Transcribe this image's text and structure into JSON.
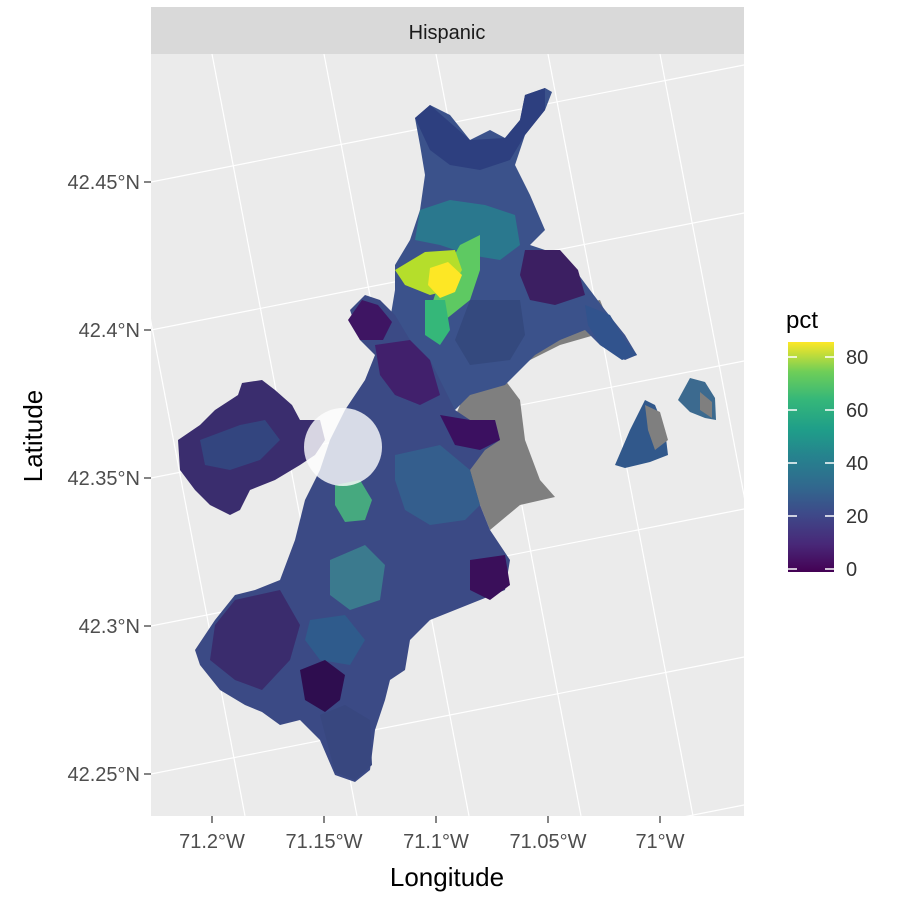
{
  "facet_strip": {
    "label": "Hispanic"
  },
  "map": {
    "x_axis": {
      "title": "Longitude",
      "ticks": [
        "71.2°W",
        "71.15°W",
        "71.1°W",
        "71.05°W",
        "71°W"
      ]
    },
    "y_axis": {
      "title": "Latitude",
      "ticks": [
        "42.45°N",
        "42.4°N",
        "42.35°N",
        "42.3°N",
        "42.25°N"
      ]
    },
    "legend": {
      "title": "pct",
      "labels": [
        "80",
        "60",
        "40",
        "20",
        "0"
      ],
      "colorscale": "viridis",
      "colors": [
        "#fde725",
        "#5ec962",
        "#21918c",
        "#3b528b",
        "#440154"
      ]
    },
    "missing_color": "#7f7f7f",
    "panel_background": "#ebebeb",
    "grid_color": "#ffffff",
    "highlight_marker": "white-circle"
  }
}
